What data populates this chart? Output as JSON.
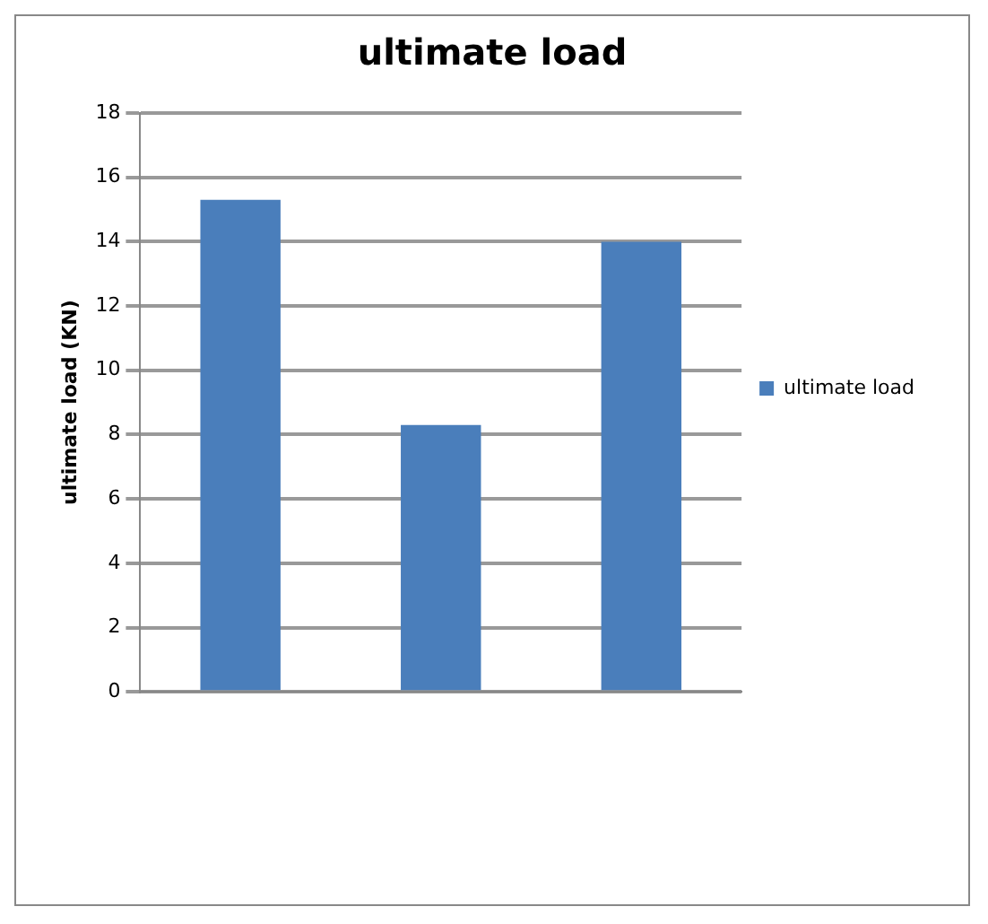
{
  "chart_data": {
    "type": "bar",
    "title": "ultimate load",
    "ylabel": "ultimate load (KN)",
    "categories": [
      null,
      null,
      null
    ],
    "series": [
      {
        "name": "ultimate load",
        "color": "#4a7ebb",
        "values": [
          15.3,
          8.3,
          14
        ]
      }
    ],
    "ylim": [
      0,
      18
    ],
    "yticks": [
      0,
      2,
      4,
      6,
      8,
      10,
      12,
      14,
      16,
      18
    ],
    "grid": "y",
    "legend": "right"
  }
}
